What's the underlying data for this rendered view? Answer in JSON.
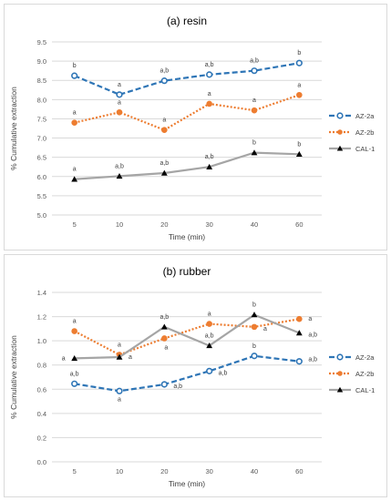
{
  "chart_data": [
    {
      "type": "line",
      "title": "(a) resin",
      "xlabel": "Time (min)",
      "ylabel": "% Cumulative extraction",
      "categories": [
        "5",
        "10",
        "20",
        "30",
        "40",
        "60"
      ],
      "ylim": [
        5.0,
        9.5
      ],
      "yticks": [
        "5.0",
        "5.5",
        "6.0",
        "6.5",
        "7.0",
        "7.5",
        "8.0",
        "8.5",
        "9.0",
        "9.5"
      ],
      "grid": true,
      "legend_position": "right",
      "series": [
        {
          "name": "AZ-2a",
          "color": "#2e75b6",
          "marker": "open-circle",
          "line": "dashed",
          "values": [
            8.62,
            8.13,
            8.49,
            8.65,
            8.75,
            8.95
          ],
          "labels": [
            "b",
            "a",
            "a,b",
            "a,b",
            "a,b",
            "b"
          ]
        },
        {
          "name": "AZ-2b",
          "color": "#ed7d31",
          "marker": "filled-circle",
          "line": "dotted",
          "values": [
            7.4,
            7.67,
            7.21,
            7.89,
            7.72,
            8.12
          ],
          "labels": [
            "a",
            "a",
            "a",
            "a",
            "a",
            "a"
          ]
        },
        {
          "name": "CAL-1",
          "color": "#a5a5a5",
          "marker": "filled-triangle",
          "line": "solid",
          "values": [
            5.93,
            6.01,
            6.09,
            6.25,
            6.62,
            6.58
          ],
          "labels": [
            "a",
            "a,b",
            "a,b",
            "a,b",
            "b",
            "b"
          ]
        }
      ]
    },
    {
      "type": "line",
      "title": "(b) rubber",
      "xlabel": "Time (min)",
      "ylabel": "% Cumulative extraction",
      "categories": [
        "5",
        "10",
        "20",
        "30",
        "40",
        "60"
      ],
      "ylim": [
        0.0,
        1.4
      ],
      "yticks": [
        "0.0",
        "0.2",
        "0.4",
        "0.6",
        "0.8",
        "1.0",
        "1.2",
        "1.4"
      ],
      "grid": true,
      "legend_position": "right",
      "series": [
        {
          "name": "AZ-2a",
          "color": "#2e75b6",
          "marker": "open-circle",
          "line": "dashed",
          "values": [
            0.645,
            0.585,
            0.64,
            0.75,
            0.875,
            0.83
          ],
          "labels": [
            "a,b",
            "a",
            "a,b",
            "a,b",
            "b",
            "a,b"
          ]
        },
        {
          "name": "AZ-2b",
          "color": "#ed7d31",
          "marker": "filled-circle",
          "line": "dotted",
          "values": [
            1.08,
            0.885,
            1.02,
            1.14,
            1.115,
            1.18
          ],
          "labels": [
            "a",
            "a",
            "a",
            "a",
            "a",
            "a"
          ]
        },
        {
          "name": "CAL-1",
          "color": "#a5a5a5",
          "marker": "filled-triangle",
          "line": "solid",
          "values": [
            0.855,
            0.865,
            1.115,
            0.96,
            1.215,
            1.065
          ],
          "labels": [
            "a",
            "a",
            "a,b",
            "a,b",
            "b",
            "a,b"
          ]
        }
      ]
    }
  ]
}
